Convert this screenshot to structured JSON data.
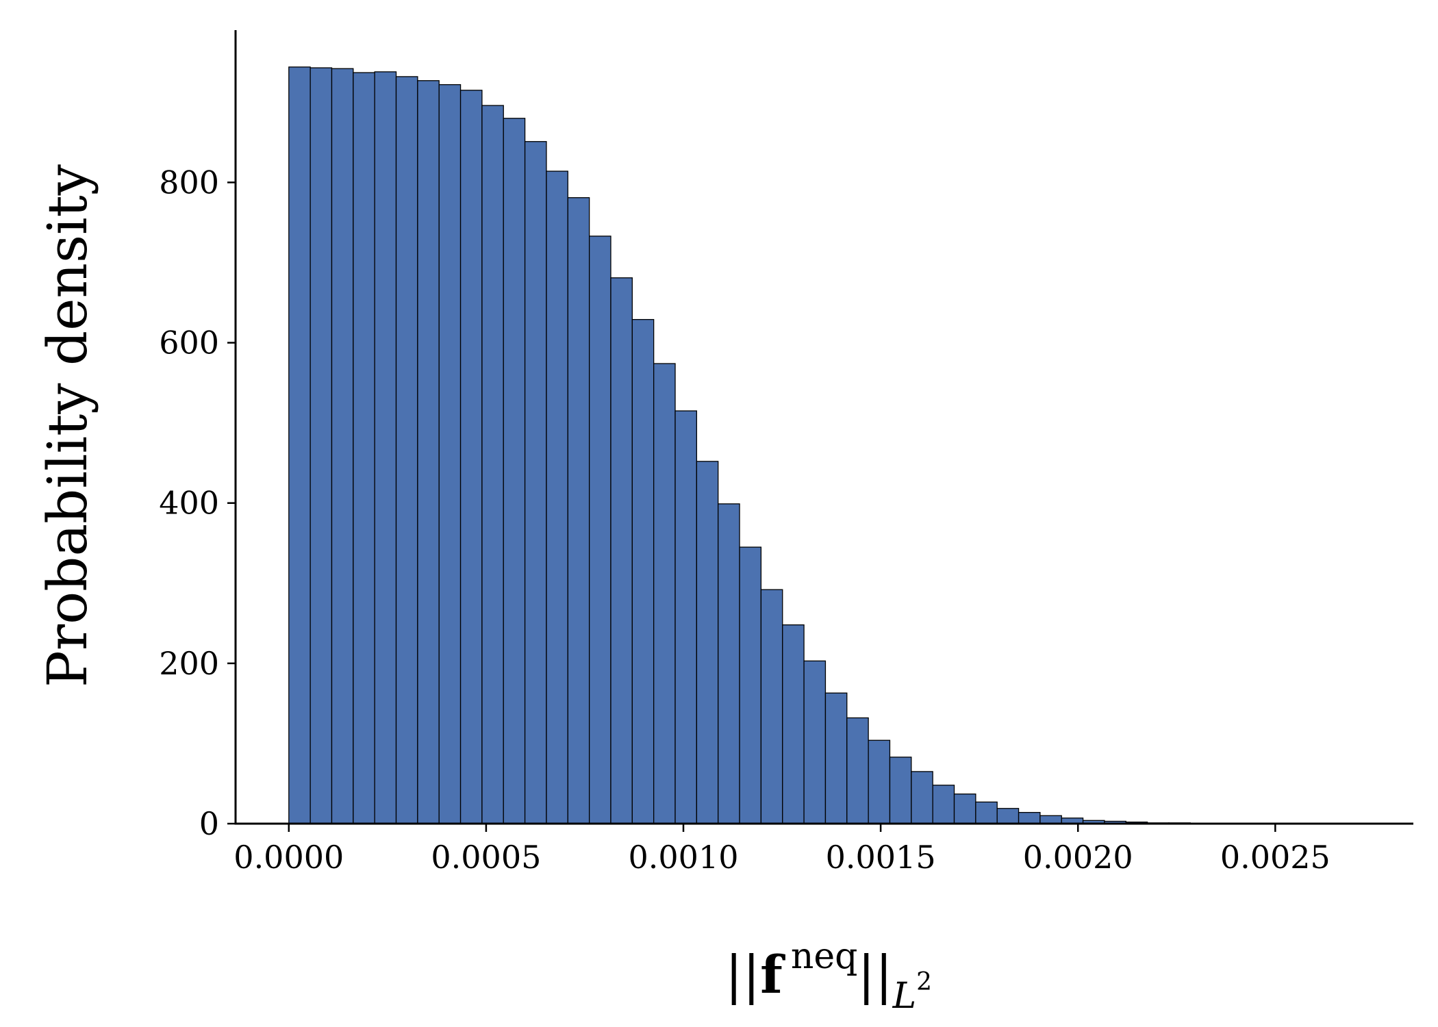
{
  "chart_data": {
    "type": "bar",
    "subtype": "histogram",
    "bar_color": "#4c72b0",
    "edge_color": "#000000",
    "ylabel": "Probability density",
    "xlabel": {
      "norm_open": "||",
      "vector": "f",
      "superscript": "neq",
      "norm_close": "||",
      "subscript": "L",
      "subscript_power": "2"
    },
    "xlim": [
      -0.000135,
      0.00285
    ],
    "ylim": [
      0,
      990
    ],
    "xticks": [
      0.0,
      0.0005,
      0.001,
      0.0015,
      0.002,
      0.0025
    ],
    "xtick_labels": [
      "0.0000",
      "0.0005",
      "0.0010",
      "0.0015",
      "0.0020",
      "0.0025"
    ],
    "yticks": [
      0,
      200,
      400,
      600,
      800
    ],
    "ytick_labels": [
      "0",
      "200",
      "400",
      "600",
      "800"
    ],
    "spines": [
      "left",
      "bottom"
    ],
    "grid": false,
    "bin_start": 0.0,
    "bin_width": 5.44e-05,
    "values": [
      944,
      943,
      942,
      937,
      938,
      932,
      927,
      922,
      915,
      896,
      880,
      851,
      814,
      781,
      733,
      681,
      629,
      574,
      515,
      452,
      399,
      345,
      292,
      248,
      203,
      163,
      132,
      104,
      83,
      65,
      48,
      37,
      27,
      19,
      14,
      10,
      7,
      4,
      3,
      2,
      1,
      1,
      0.5,
      0.5,
      0.3,
      0.2,
      0.1,
      0.1,
      0.05,
      0.05,
      0.02
    ]
  }
}
